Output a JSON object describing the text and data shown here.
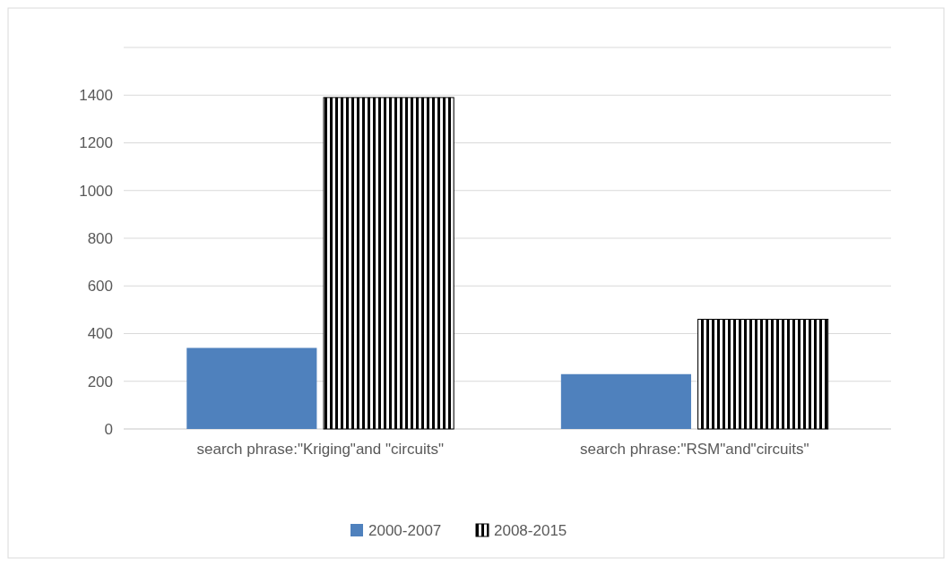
{
  "chart_data": {
    "type": "bar",
    "categories": [
      "search phrase:\"Kriging\"and \"circuits\"",
      "search phrase:\"RSM\"and\"circuits\""
    ],
    "series": [
      {
        "name": "2000-2007",
        "color": "#4f81bd",
        "values": [
          340,
          230
        ]
      },
      {
        "name": "2008-2015",
        "color": "#000000",
        "values": [
          1390,
          460
        ]
      }
    ],
    "ylim": [
      0,
      1600
    ],
    "yticks": [
      0,
      200,
      400,
      600,
      800,
      1000,
      1200,
      1400,
      {
        "value": 1600,
        "label": null
      }
    ],
    "grid": "y",
    "legend": "bottom"
  }
}
